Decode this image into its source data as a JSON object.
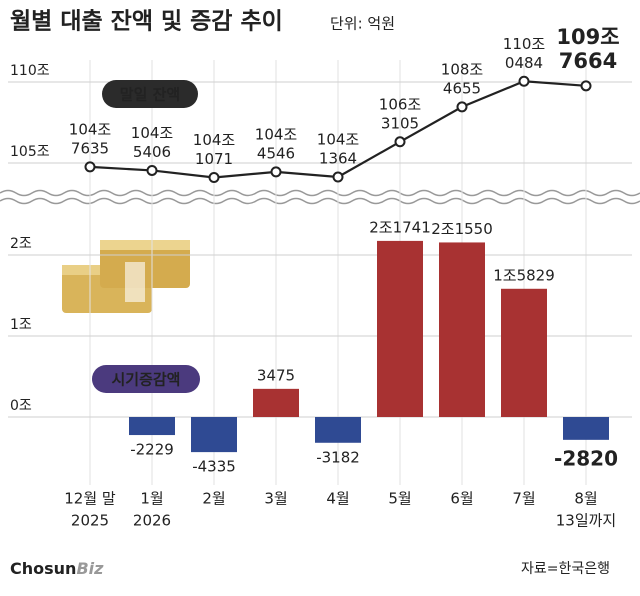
{
  "source": "자료=한국은행",
  "logo": [
    "Chosun",
    "Biz"
  ],
  "chart_data": [
    {
      "type": "line",
      "title": "월별 대출 잔액 및 증감 추이",
      "subtitle": "단위: 억원",
      "series": [
        {
          "name": "말일 잔액",
          "color": "#222222",
          "values": [
            1047635,
            1045406,
            1041071,
            1044546,
            1041364,
            1063105,
            1084655,
            1100484,
            1097664
          ],
          "value_labels": [
            [
              "104조",
              "7635"
            ],
            [
              "104조",
              "5406"
            ],
            [
              "104조",
              "1071"
            ],
            [
              "104조",
              "4546"
            ],
            [
              "104조",
              "1364"
            ],
            [
              "106조",
              "3105"
            ],
            [
              "108조",
              "4655"
            ],
            [
              "110조",
              "0484"
            ],
            [
              "109조",
              "7664"
            ]
          ]
        }
      ],
      "ylim": [
        1030000,
        1113000
      ],
      "yticks": [
        {
          "value": 1050000,
          "label": "105조"
        },
        {
          "value": 1100000,
          "label": "110조"
        }
      ],
      "grid": true
    },
    {
      "type": "bar",
      "categories": [
        [
          "12월 말",
          "2025"
        ],
        [
          "1월",
          "2026"
        ],
        [
          "2월"
        ],
        [
          "3월"
        ],
        [
          "4월"
        ],
        [
          "5월"
        ],
        [
          "6월"
        ],
        [
          "7월"
        ],
        [
          "8월",
          "13일까지"
        ]
      ],
      "series": [
        {
          "name": "시기증감액",
          "positive_color": "#a83232",
          "negative_color": "#2f4a93",
          "values": [
            null,
            -2229,
            -4335,
            3475,
            -3182,
            21741,
            21550,
            15829,
            -2820
          ],
          "value_labels": [
            null,
            "-2229",
            "-4335",
            "3475",
            "-3182",
            "2조1741",
            "2조1550",
            "1조5829",
            "-2820"
          ]
        }
      ],
      "ylim": [
        -9000,
        25000
      ],
      "yticks": [
        {
          "value": 0,
          "label": "0조"
        },
        {
          "value": 10000,
          "label": "1조"
        },
        {
          "value": 20000,
          "label": "2조"
        }
      ],
      "grid": true
    }
  ]
}
